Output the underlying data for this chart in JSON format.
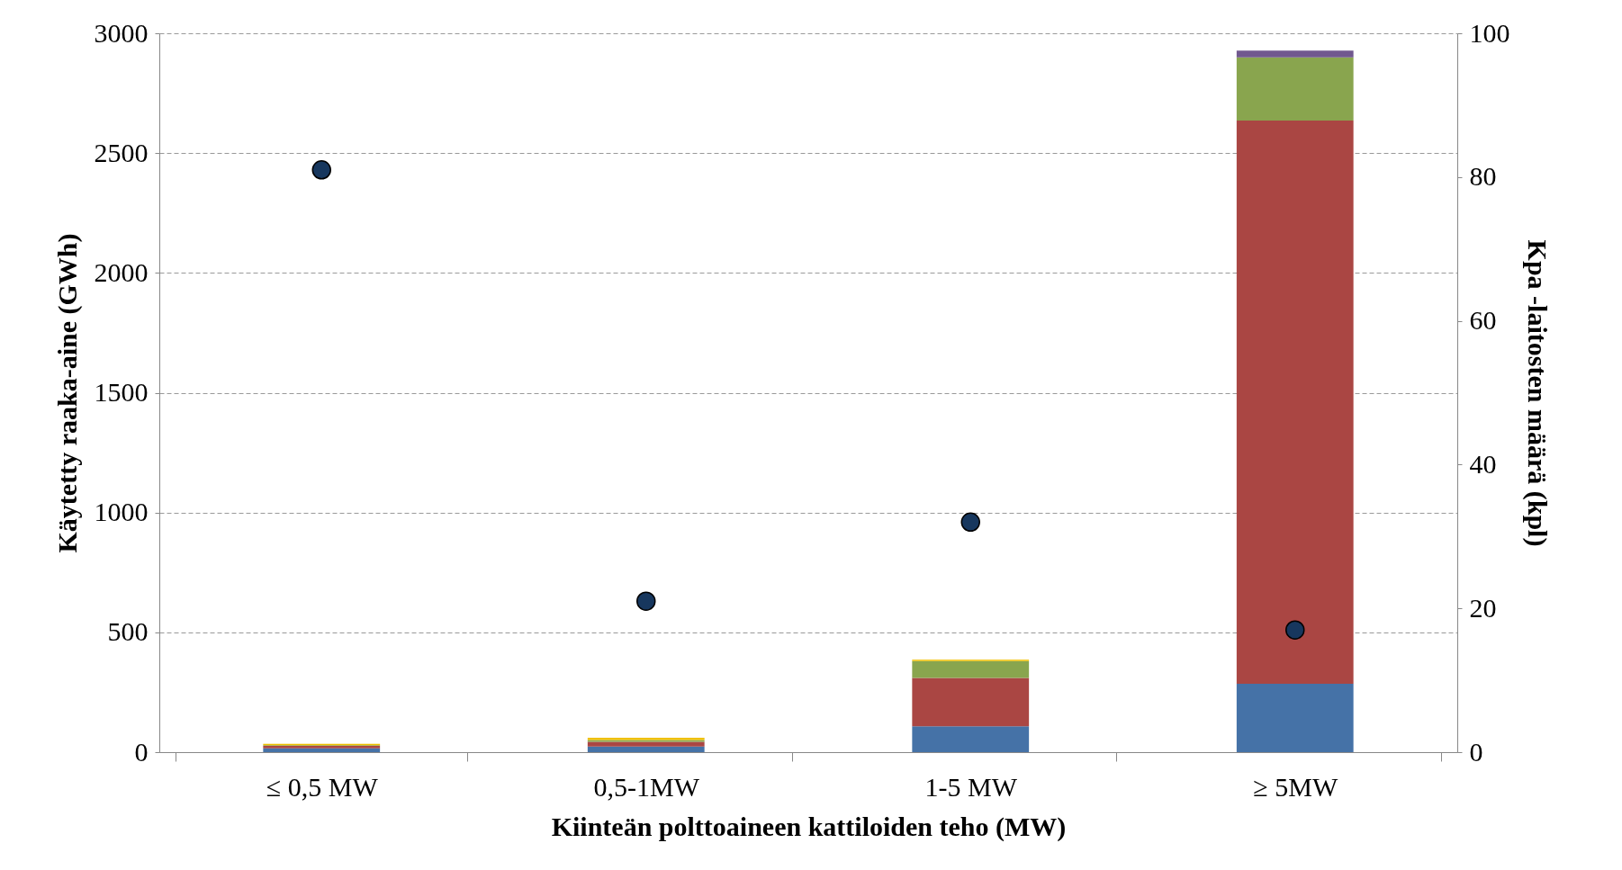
{
  "chart_data": {
    "type": "bar",
    "stacked": true,
    "xlabel": "Kiinteän polttoaineen kattiloiden teho (MW)",
    "ylabel": "Käytetty raaka-aine (GWh)",
    "y2label": "Kpa -laitosten määrä (kpl)",
    "categories": [
      "≤ 0,5 MW",
      "0,5-1MW",
      "1-5 MW",
      "≥ 5MW"
    ],
    "series": [
      {
        "color": "#4572a7",
        "values": [
          16,
          23,
          108,
          285
        ]
      },
      {
        "color": "#aa4643",
        "values": [
          10,
          20,
          202,
          2351
        ]
      },
      {
        "color": "#89a54e",
        "values": [
          3,
          8,
          70,
          264
        ]
      },
      {
        "color": "#71588f",
        "values": [
          0,
          0,
          0,
          28
        ]
      },
      {
        "color": "#f0c000",
        "values": [
          6,
          9,
          6,
          0
        ]
      },
      {
        "type": "scatter",
        "axis": "y2",
        "color": "#17375e",
        "values": [
          81,
          21,
          32,
          17
        ]
      }
    ],
    "ylim": [
      0,
      3000
    ],
    "yticks": [
      0,
      500,
      1000,
      1500,
      2000,
      2500,
      3000
    ],
    "y2lim": [
      0,
      100
    ],
    "y2ticks": [
      0,
      20,
      40,
      60,
      80,
      100
    ],
    "grid": "y",
    "legend": false,
    "marker": "circle"
  }
}
